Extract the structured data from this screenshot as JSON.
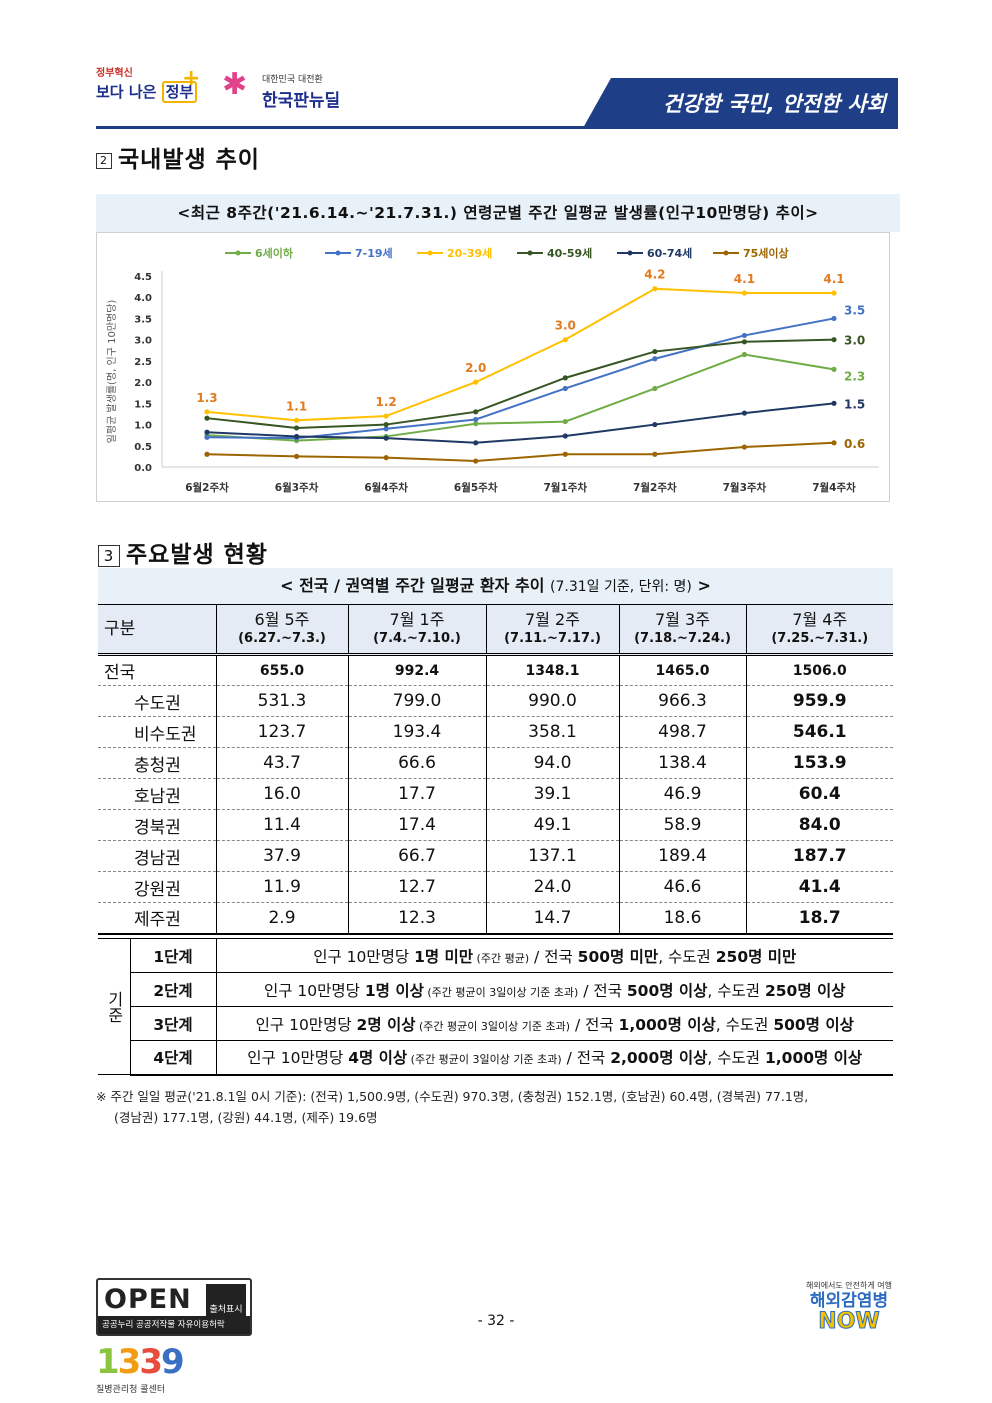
{
  "header": {
    "logo1_small": "정부혁신",
    "logo1_big_a": "보다 나은",
    "logo1_big_b": "정부",
    "logo2_small": "대한민국 대전환",
    "logo2_big": "한국판뉴딜",
    "banner": "건강한 국민, 안전한 사회"
  },
  "section2": {
    "num": "2",
    "title": "국내발생 추이"
  },
  "chart_title": "<최근 8주간('21.6.14.~'21.7.31.) 연령군별 주간 일평균 발생률(인구10만명당) 추이>",
  "chart_data": {
    "type": "line",
    "ylabel": "일평균 발생률(명, 인구 10만명당)",
    "xlabel": "",
    "ylim": [
      0,
      4.5
    ],
    "yticks": [
      "0.0",
      "0.5",
      "1.0",
      "1.5",
      "2.0",
      "2.5",
      "3.0",
      "3.5",
      "4.0",
      "4.5"
    ],
    "categories": [
      "6월2주차",
      "6월3주차",
      "6월4주차",
      "6월5주차",
      "7월1주차",
      "7월2주차",
      "7월3주차",
      "7월4주차"
    ],
    "legend_position": "top",
    "series": [
      {
        "name": "6세이하",
        "color": "#70ad47",
        "values": [
          0.75,
          0.62,
          0.72,
          1.02,
          1.07,
          1.85,
          2.65,
          2.3
        ]
      },
      {
        "name": "7-19세",
        "color": "#4472c4",
        "values": [
          0.7,
          0.68,
          0.9,
          1.12,
          1.85,
          2.55,
          3.1,
          3.5
        ]
      },
      {
        "name": "20-39세",
        "color": "#ffc000",
        "values": [
          1.3,
          1.1,
          1.2,
          2.0,
          3.0,
          4.2,
          4.1,
          4.1
        ]
      },
      {
        "name": "40-59세",
        "color": "#375623",
        "values": [
          1.15,
          0.92,
          1.0,
          1.3,
          2.1,
          2.72,
          2.95,
          3.0
        ]
      },
      {
        "name": "60-74세",
        "color": "#203864",
        "values": [
          0.82,
          0.72,
          0.68,
          0.57,
          0.73,
          1.0,
          1.27,
          1.5
        ]
      },
      {
        "name": "75세이상",
        "color": "#9c6500",
        "values": [
          0.3,
          0.25,
          0.22,
          0.14,
          0.3,
          0.3,
          0.47,
          0.57
        ]
      }
    ],
    "annotations": {
      "20-39세": [
        "1.3",
        "1.1",
        "1.2",
        "2.0",
        "3.0",
        "4.2",
        "4.1",
        "4.1"
      ],
      "end_labels": [
        {
          "series": "7-19세",
          "text": "3.5"
        },
        {
          "series": "40-59세",
          "text": "3.0"
        },
        {
          "series": "6세이하",
          "text": "2.3"
        },
        {
          "series": "60-74세",
          "text": "1.5"
        },
        {
          "series": "75세이상",
          "text": "0.6"
        }
      ]
    }
  },
  "section3": {
    "num": "3",
    "title": "주요발생 현황"
  },
  "table_title": "< 전국 / 권역별 주간 일평균 환자 추이",
  "table_title_note": "(7.31일 기준, 단위: 명)",
  "table_title_end": ">",
  "table": {
    "header_first": "구분",
    "columns": [
      {
        "week": "6월 5주",
        "range": "(6.27.~7.3.)"
      },
      {
        "week": "7월 1주",
        "range": "(7.4.~7.10.)"
      },
      {
        "week": "7월 2주",
        "range": "(7.11.~7.17.)"
      },
      {
        "week": "7월 3주",
        "range": "(7.18.~7.24.)"
      },
      {
        "week": "7월 4주",
        "range": "(7.25.~7.31.)"
      }
    ],
    "rows": [
      {
        "name": "전국",
        "values": [
          "655.0",
          "992.4",
          "1348.1",
          "1465.0",
          "1506.0"
        ]
      },
      {
        "name": "수도권",
        "values": [
          "531.3",
          "799.0",
          "990.0",
          "966.3",
          "959.9"
        ]
      },
      {
        "name": "비수도권",
        "values": [
          "123.7",
          "193.4",
          "358.1",
          "498.7",
          "546.1"
        ]
      },
      {
        "name": "충청권",
        "values": [
          "43.7",
          "66.6",
          "94.0",
          "138.4",
          "153.9"
        ]
      },
      {
        "name": "호남권",
        "values": [
          "16.0",
          "17.7",
          "39.1",
          "46.9",
          "60.4"
        ]
      },
      {
        "name": "경북권",
        "values": [
          "11.4",
          "17.4",
          "49.1",
          "58.9",
          "84.0"
        ]
      },
      {
        "name": "경남권",
        "values": [
          "37.9",
          "66.7",
          "137.1",
          "189.4",
          "187.7"
        ]
      },
      {
        "name": "강원권",
        "values": [
          "11.9",
          "12.7",
          "24.0",
          "46.6",
          "41.4"
        ]
      },
      {
        "name": "제주권",
        "values": [
          "2.9",
          "12.3",
          "14.7",
          "18.6",
          "18.7"
        ]
      }
    ]
  },
  "criteria": {
    "label": "기준",
    "levels": [
      {
        "level": "1단계",
        "a": "인구 10만명당 ",
        "b": "1명 미만",
        "c": " (주간 평균)",
        "d": " / 전국 ",
        "e": "500명 미만",
        "f": ", 수도권 ",
        "g": "250명 미만"
      },
      {
        "level": "2단계",
        "a": "인구 10만명당 ",
        "b": "1명 이상",
        "c": " (주간 평균이 3일이상 기준 초과)",
        "d": " / 전국 ",
        "e": "500명 이상",
        "f": ", 수도권 ",
        "g": "250명 이상"
      },
      {
        "level": "3단계",
        "a": "인구 10만명당 ",
        "b": "2명 이상",
        "c": " (주간 평균이 3일이상 기준 초과)",
        "d": " / 전국 ",
        "e": "1,000명 이상",
        "f": ", 수도권 ",
        "g": "500명 이상"
      },
      {
        "level": "4단계",
        "a": "인구 10만명당 ",
        "b": "4명 이상",
        "c": " (주간 평균이 3일이상 기준 초과)",
        "d": " / 전국 ",
        "e": "2,000명 이상",
        "f": ", 수도권 ",
        "g": "1,000명 이상"
      }
    ]
  },
  "footnote": {
    "line1": "※ 주간 일일 평균('21.8.1일 0시 기준): (전국) 1,500.9명, (수도권) 970.3명, (충청권) 152.1명, (호남권) 60.4명, (경북권) 77.1명,",
    "line2": "(경남권) 177.1명, (강원) 44.1명, (제주) 19.6명"
  },
  "footer": {
    "page": "- 32 -",
    "open_text": "OPEN",
    "open_box": "출처표시",
    "open_bar": "공공누리  공공저작물 자유이용허락",
    "callcenter_num": [
      "1",
      "3",
      "3",
      "9"
    ],
    "callcenter_label": "질병관리청 콜센터",
    "now_small": "해외에서도 안전하게 여행",
    "now_big1": "해외감염병",
    "now_big2": "NOW"
  }
}
